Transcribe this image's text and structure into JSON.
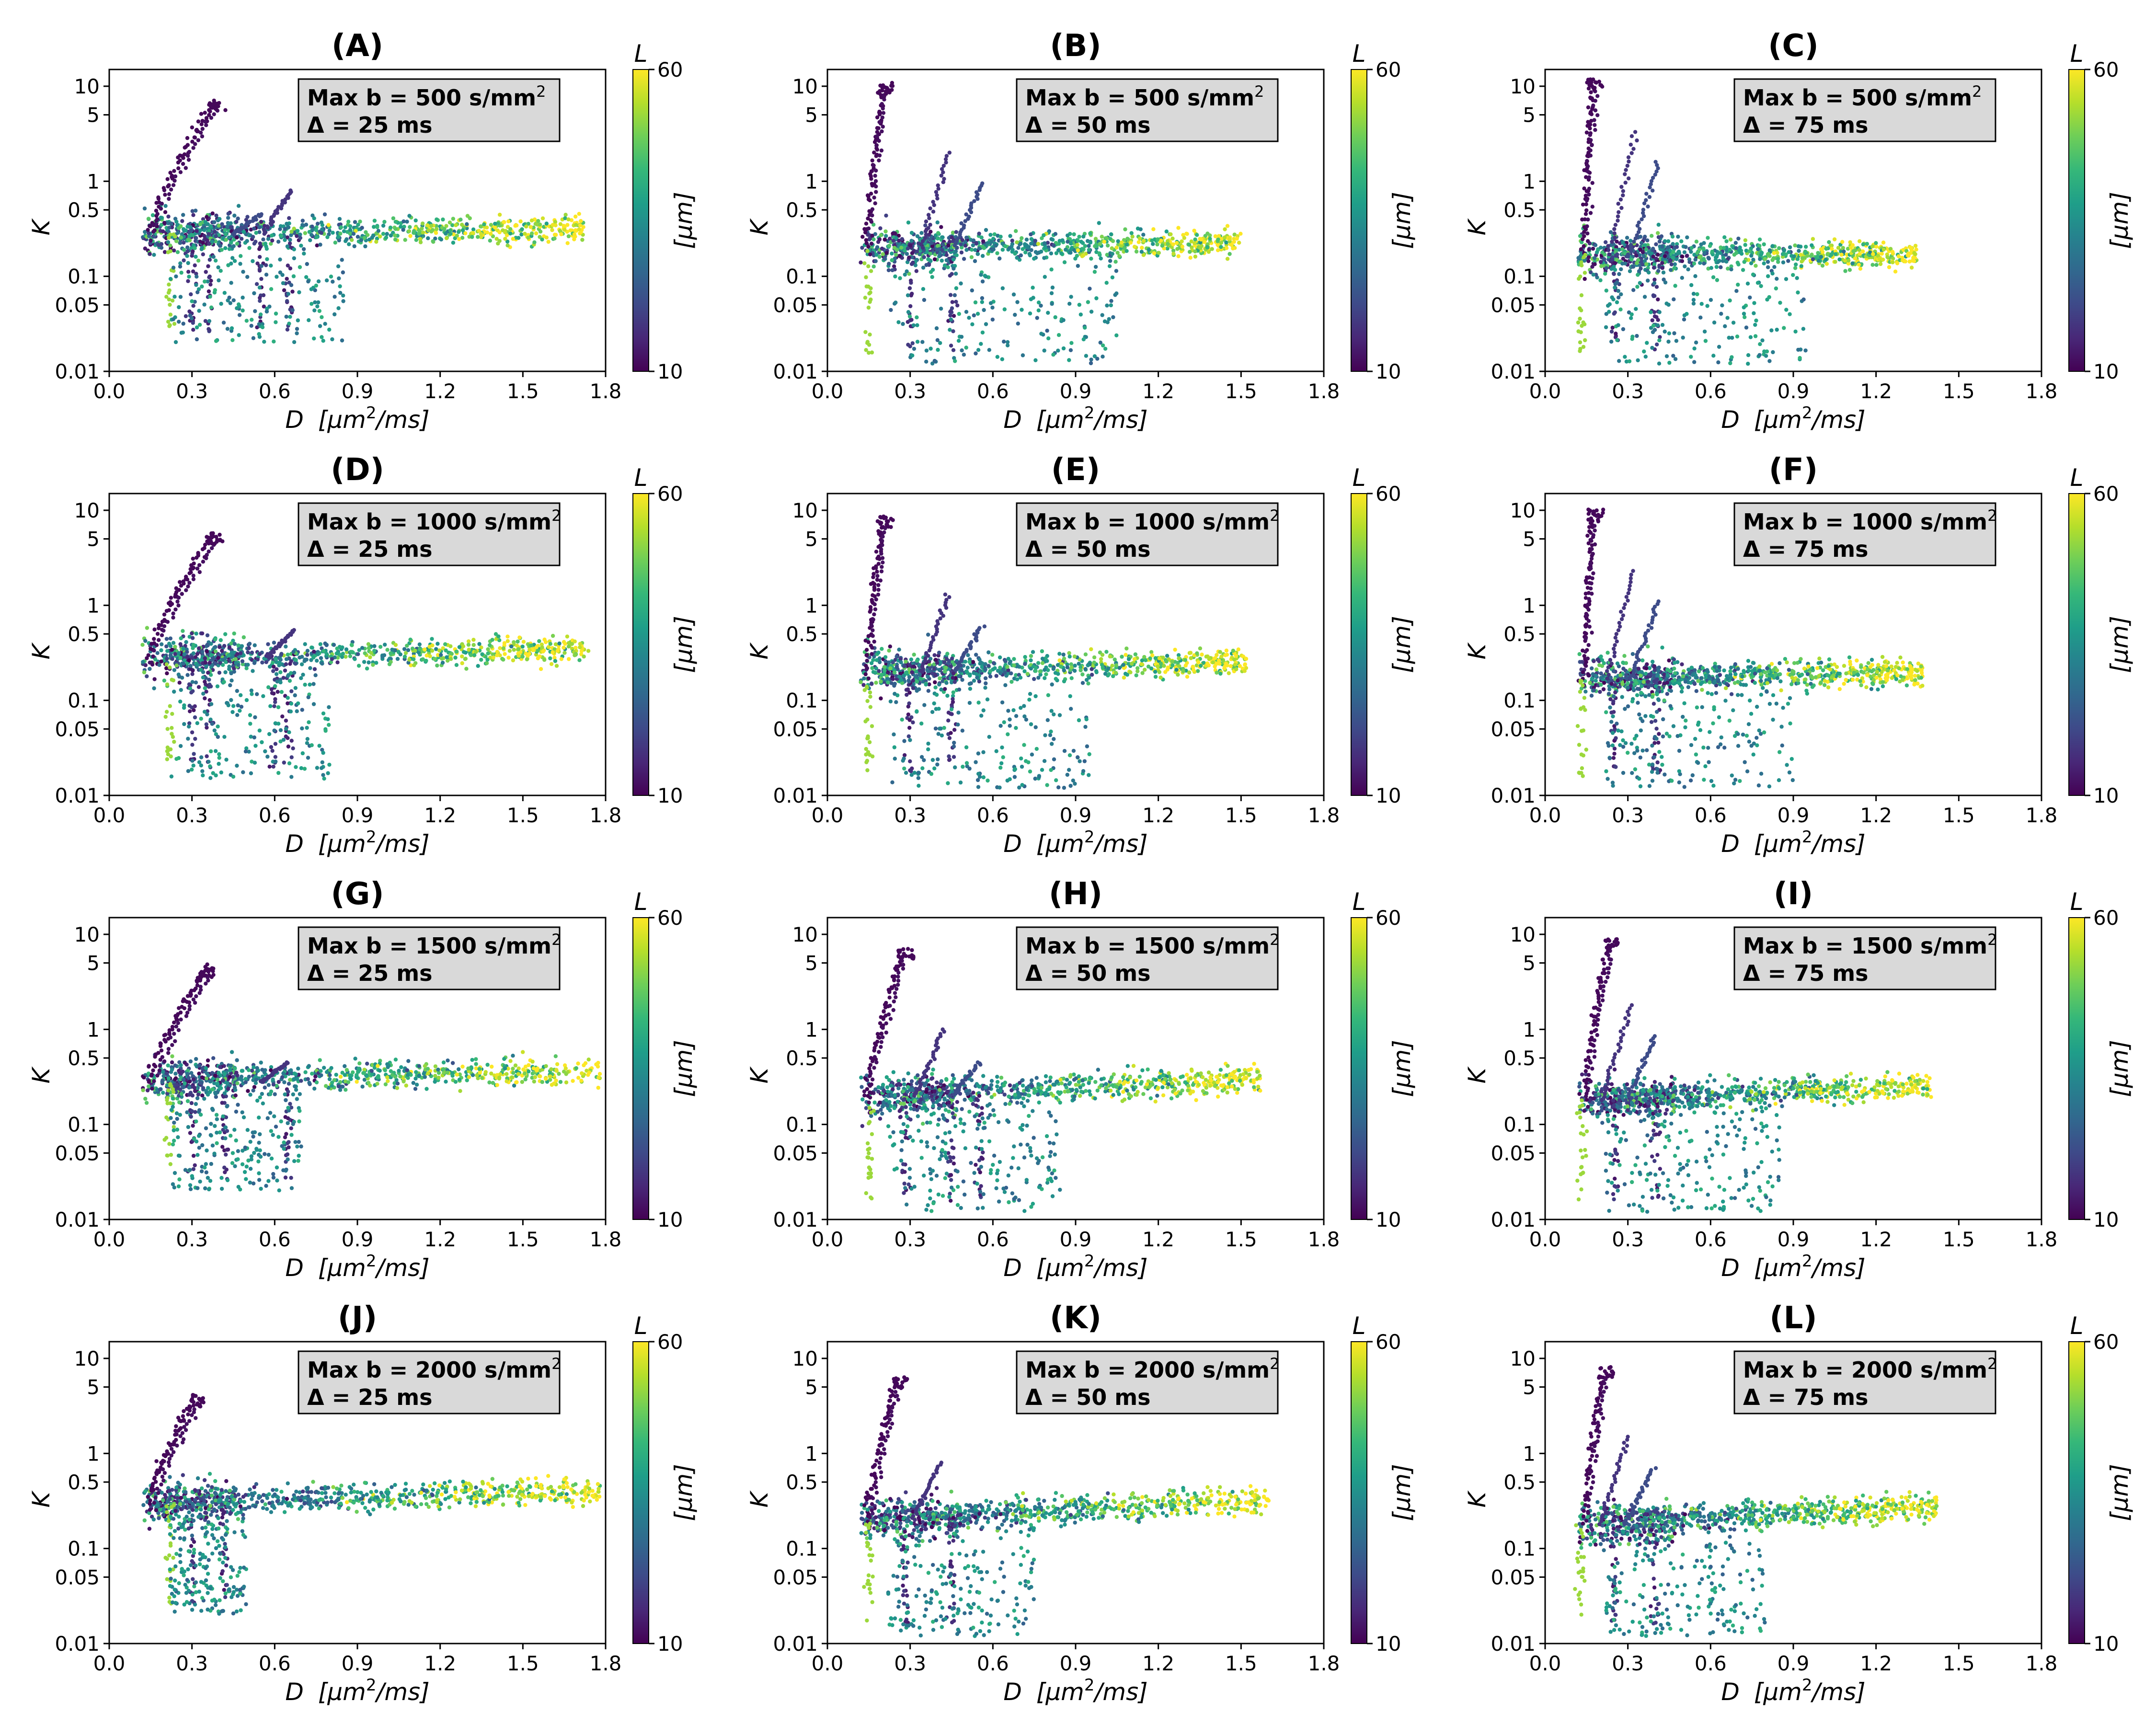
{
  "figure": {
    "layout": "4 rows x 3 columns of scatter plots",
    "shared": {
      "xlabel_var": "D",
      "xlabel_unit_pre": "[μm",
      "xlabel_unit_post": "/ms]",
      "xlabel_sup": "2",
      "ylabel": "K",
      "colorbar_symbol": "L",
      "colorbar_unit": "[μm]",
      "colorbar_ticks": [
        "60",
        "10"
      ],
      "box_line1_prefix": "Max b = ",
      "box_line1_unit": " s/mm",
      "box_sup": "2",
      "box_line2_prefix": "Δ = ",
      "box_line2_suffix": " ms"
    }
  },
  "chart_data": [
    {
      "type": "scatter",
      "panel": "(A)",
      "max_b": "500",
      "delta": "25",
      "title": "(A)",
      "xlabel": "D [μm2/ms]",
      "ylabel": "K",
      "xlim": [
        0.0,
        1.8
      ],
      "ylim": [
        0.01,
        15
      ],
      "yscale": "log",
      "xticks": [
        "0.0",
        "0.3",
        "0.6",
        "0.9",
        "1.2",
        "1.5",
        "1.8"
      ],
      "yticks": [
        "0.01",
        "0.05",
        "0.1",
        "0.5",
        "1",
        "5",
        "10"
      ],
      "colorbar": {
        "label": "L [μm]",
        "range": [
          10,
          60
        ]
      },
      "clusters": {
        "plateau": 0.28,
        "plateau_slope": 0.04,
        "x_start": 0.12,
        "x_end": 1.72,
        "spike_peak": 6.8,
        "spike_x": 0.38,
        "mini_spikes": [
          [
            0.66,
            0.8
          ],
          [
            0.55,
            0.45
          ]
        ],
        "drop_xs": [
          0.22,
          0.3,
          0.36,
          0.55,
          0.65
        ],
        "low_cloud_max_x": 0.85,
        "low_cloud_min_k": 0.02
      }
    },
    {
      "type": "scatter",
      "panel": "(B)",
      "max_b": "500",
      "delta": "50",
      "title": "(B)",
      "xlabel": "D [μm2/ms]",
      "ylabel": "K",
      "xlim": [
        0.0,
        1.8
      ],
      "ylim": [
        0.01,
        15
      ],
      "yscale": "log",
      "xticks": [
        "0.0",
        "0.3",
        "0.6",
        "0.9",
        "1.2",
        "1.5",
        "1.8"
      ],
      "yticks": [
        "0.01",
        "0.05",
        "0.1",
        "0.5",
        "1",
        "5",
        "10"
      ],
      "colorbar": {
        "label": "L [μm]",
        "range": [
          10,
          60
        ]
      },
      "clusters": {
        "plateau": 0.2,
        "plateau_slope": 0.04,
        "x_start": 0.12,
        "x_end": 1.5,
        "spike_peak": 10,
        "spike_x": 0.2,
        "mini_spikes": [
          [
            0.44,
            2.0
          ],
          [
            0.56,
            0.95
          ]
        ],
        "drop_xs": [
          0.15,
          0.3,
          0.45
        ],
        "low_cloud_max_x": 1.05,
        "low_cloud_min_k": 0.012
      }
    },
    {
      "type": "scatter",
      "panel": "(C)",
      "max_b": "500",
      "delta": "75",
      "title": "(C)",
      "xlabel": "D [μm2/ms]",
      "ylabel": "K",
      "xlim": [
        0.0,
        1.8
      ],
      "ylim": [
        0.01,
        15
      ],
      "yscale": "log",
      "xticks": [
        "0.0",
        "0.3",
        "0.6",
        "0.9",
        "1.2",
        "1.5",
        "1.8"
      ],
      "yticks": [
        "0.01",
        "0.05",
        "0.1",
        "0.5",
        "1",
        "5",
        "10"
      ],
      "colorbar": {
        "label": "L [μm]",
        "range": [
          10,
          60
        ]
      },
      "clusters": {
        "plateau": 0.17,
        "plateau_slope": 0.0,
        "x_start": 0.12,
        "x_end": 1.35,
        "spike_peak": 11,
        "spike_x": 0.17,
        "mini_spikes": [
          [
            0.33,
            3.3
          ],
          [
            0.41,
            1.6
          ]
        ],
        "drop_xs": [
          0.13,
          0.25,
          0.4
        ],
        "low_cloud_max_x": 0.95,
        "low_cloud_min_k": 0.012
      }
    },
    {
      "type": "scatter",
      "panel": "(D)",
      "max_b": "1000",
      "delta": "25",
      "title": "(D)",
      "xlabel": "D [μm2/ms]",
      "ylabel": "K",
      "xlim": [
        0.0,
        1.8
      ],
      "ylim": [
        0.01,
        15
      ],
      "yscale": "log",
      "xticks": [
        "0.0",
        "0.3",
        "0.6",
        "0.9",
        "1.2",
        "1.5",
        "1.8"
      ],
      "yticks": [
        "0.01",
        "0.05",
        "0.1",
        "0.5",
        "1",
        "5",
        "10"
      ],
      "colorbar": {
        "label": "L [μm]",
        "range": [
          10,
          60
        ]
      },
      "clusters": {
        "plateau": 0.28,
        "plateau_slope": 0.07,
        "x_start": 0.12,
        "x_end": 1.74,
        "spike_peak": 5.3,
        "spike_x": 0.37,
        "mini_spikes": [
          [
            0.67,
            0.55
          ]
        ],
        "drop_xs": [
          0.22,
          0.3,
          0.36,
          0.6,
          0.65
        ],
        "low_cloud_max_x": 0.8,
        "low_cloud_min_k": 0.015
      }
    },
    {
      "type": "scatter",
      "panel": "(E)",
      "max_b": "1000",
      "delta": "50",
      "title": "(E)",
      "xlabel": "D [μm2/ms]",
      "ylabel": "K",
      "xlim": [
        0.0,
        1.8
      ],
      "ylim": [
        0.01,
        15
      ],
      "yscale": "log",
      "xticks": [
        "0.0",
        "0.3",
        "0.6",
        "0.9",
        "1.2",
        "1.5",
        "1.8"
      ],
      "yticks": [
        "0.01",
        "0.05",
        "0.1",
        "0.5",
        "1",
        "5",
        "10"
      ],
      "colorbar": {
        "label": "L [μm]",
        "range": [
          10,
          60
        ]
      },
      "clusters": {
        "plateau": 0.2,
        "plateau_slope": 0.09,
        "x_start": 0.12,
        "x_end": 1.52,
        "spike_peak": 8,
        "spike_x": 0.2,
        "mini_spikes": [
          [
            0.44,
            1.3
          ],
          [
            0.56,
            0.6
          ]
        ],
        "drop_xs": [
          0.15,
          0.3,
          0.45
        ],
        "low_cloud_max_x": 0.95,
        "low_cloud_min_k": 0.012
      }
    },
    {
      "type": "scatter",
      "panel": "(F)",
      "max_b": "1000",
      "delta": "75",
      "title": "(F)",
      "xlabel": "D [μm2/ms]",
      "ylabel": "K",
      "xlim": [
        0.0,
        1.8
      ],
      "ylim": [
        0.01,
        15
      ],
      "yscale": "log",
      "xticks": [
        "0.0",
        "0.3",
        "0.6",
        "0.9",
        "1.2",
        "1.5",
        "1.8"
      ],
      "yticks": [
        "0.01",
        "0.05",
        "0.1",
        "0.5",
        "1",
        "5",
        "10"
      ],
      "colorbar": {
        "label": "L [μm]",
        "range": [
          10,
          60
        ]
      },
      "clusters": {
        "plateau": 0.17,
        "plateau_slope": 0.05,
        "x_start": 0.12,
        "x_end": 1.37,
        "spike_peak": 9.5,
        "spike_x": 0.17,
        "mini_spikes": [
          [
            0.32,
            2.3
          ],
          [
            0.41,
            1.1
          ]
        ],
        "drop_xs": [
          0.13,
          0.25,
          0.4
        ],
        "low_cloud_max_x": 0.9,
        "low_cloud_min_k": 0.012
      }
    },
    {
      "type": "scatter",
      "panel": "(G)",
      "max_b": "1500",
      "delta": "25",
      "title": "(G)",
      "xlabel": "D [μm2/ms]",
      "ylabel": "K",
      "xlim": [
        0.0,
        1.8
      ],
      "ylim": [
        0.01,
        15
      ],
      "yscale": "log",
      "xticks": [
        "0.0",
        "0.3",
        "0.6",
        "0.9",
        "1.2",
        "1.5",
        "1.8"
      ],
      "yticks": [
        "0.01",
        "0.05",
        "0.1",
        "0.5",
        "1",
        "5",
        "10"
      ],
      "colorbar": {
        "label": "L [μm]",
        "range": [
          10,
          60
        ]
      },
      "clusters": {
        "plateau": 0.28,
        "plateau_slope": 0.1,
        "x_start": 0.12,
        "x_end": 1.78,
        "spike_peak": 4.3,
        "spike_x": 0.35,
        "mini_spikes": [
          [
            0.65,
            0.45
          ]
        ],
        "drop_xs": [
          0.22,
          0.3,
          0.42,
          0.65
        ],
        "low_cloud_max_x": 0.7,
        "low_cloud_min_k": 0.02
      }
    },
    {
      "type": "scatter",
      "panel": "(H)",
      "max_b": "1500",
      "delta": "50",
      "title": "(H)",
      "xlabel": "D [μm2/ms]",
      "ylabel": "K",
      "xlim": [
        0.0,
        1.8
      ],
      "ylim": [
        0.01,
        15
      ],
      "yscale": "log",
      "xticks": [
        "0.0",
        "0.3",
        "0.6",
        "0.9",
        "1.2",
        "1.5",
        "1.8"
      ],
      "yticks": [
        "0.01",
        "0.05",
        "0.1",
        "0.5",
        "1",
        "5",
        "10"
      ],
      "colorbar": {
        "label": "L [μm]",
        "range": [
          10,
          60
        ]
      },
      "clusters": {
        "plateau": 0.2,
        "plateau_slope": 0.14,
        "x_start": 0.12,
        "x_end": 1.57,
        "spike_peak": 6.5,
        "spike_x": 0.27,
        "mini_spikes": [
          [
            0.42,
            1.0
          ],
          [
            0.55,
            0.45
          ]
        ],
        "drop_xs": [
          0.15,
          0.28,
          0.45,
          0.55
        ],
        "low_cloud_max_x": 0.85,
        "low_cloud_min_k": 0.012
      }
    },
    {
      "type": "scatter",
      "panel": "(I)",
      "max_b": "1500",
      "delta": "75",
      "title": "(I)",
      "xlabel": "D [μm2/ms]",
      "ylabel": "K",
      "xlim": [
        0.0,
        1.8
      ],
      "ylim": [
        0.01,
        15
      ],
      "yscale": "log",
      "xticks": [
        "0.0",
        "0.3",
        "0.6",
        "0.9",
        "1.2",
        "1.5",
        "1.8"
      ],
      "yticks": [
        "0.01",
        "0.05",
        "0.1",
        "0.5",
        "1",
        "5",
        "10"
      ],
      "colorbar": {
        "label": "L [μm]",
        "range": [
          10,
          60
        ]
      },
      "clusters": {
        "plateau": 0.18,
        "plateau_slope": 0.13,
        "x_start": 0.12,
        "x_end": 1.4,
        "spike_peak": 8.3,
        "spike_x": 0.23,
        "mini_spikes": [
          [
            0.31,
            1.8
          ],
          [
            0.4,
            0.85
          ]
        ],
        "drop_xs": [
          0.13,
          0.25,
          0.4
        ],
        "low_cloud_max_x": 0.85,
        "low_cloud_min_k": 0.012
      }
    },
    {
      "type": "scatter",
      "panel": "(J)",
      "max_b": "2000",
      "delta": "25",
      "title": "(J)",
      "xlabel": "D [μm2/ms]",
      "ylabel": "K",
      "xlim": [
        0.0,
        1.8
      ],
      "ylim": [
        0.01,
        15
      ],
      "yscale": "log",
      "xticks": [
        "0.0",
        "0.3",
        "0.6",
        "0.9",
        "1.2",
        "1.5",
        "1.8"
      ],
      "yticks": [
        "0.01",
        "0.05",
        "0.1",
        "0.5",
        "1",
        "5",
        "10"
      ],
      "colorbar": {
        "label": "L [μm]",
        "range": [
          10,
          60
        ]
      },
      "clusters": {
        "plateau": 0.3,
        "plateau_slope": 0.11,
        "x_start": 0.12,
        "x_end": 1.78,
        "spike_peak": 3.8,
        "spike_x": 0.31,
        "mini_spikes": [],
        "drop_xs": [
          0.22,
          0.3,
          0.42
        ],
        "low_cloud_max_x": 0.5,
        "low_cloud_min_k": 0.02
      }
    },
    {
      "type": "scatter",
      "panel": "(K)",
      "max_b": "2000",
      "delta": "50",
      "title": "(K)",
      "xlabel": "D [μm2/ms]",
      "ylabel": "K",
      "xlim": [
        0.0,
        1.8
      ],
      "ylim": [
        0.01,
        15
      ],
      "yscale": "log",
      "xticks": [
        "0.0",
        "0.3",
        "0.6",
        "0.9",
        "1.2",
        "1.5",
        "1.8"
      ],
      "yticks": [
        "0.01",
        "0.05",
        "0.1",
        "0.5",
        "1",
        "5",
        "10"
      ],
      "colorbar": {
        "label": "L [μm]",
        "range": [
          10,
          60
        ]
      },
      "clusters": {
        "plateau": 0.2,
        "plateau_slope": 0.17,
        "x_start": 0.12,
        "x_end": 1.6,
        "spike_peak": 6.0,
        "spike_x": 0.25,
        "mini_spikes": [
          [
            0.41,
            0.8
          ]
        ],
        "drop_xs": [
          0.15,
          0.28,
          0.45
        ],
        "low_cloud_max_x": 0.75,
        "low_cloud_min_k": 0.012
      }
    },
    {
      "type": "scatter",
      "panel": "(L)",
      "max_b": "2000",
      "delta": "75",
      "title": "(L)",
      "xlabel": "D [μm2/ms]",
      "ylabel": "K",
      "xlim": [
        0.0,
        1.8
      ],
      "ylim": [
        0.01,
        15
      ],
      "yscale": "log",
      "xticks": [
        "0.0",
        "0.3",
        "0.6",
        "0.9",
        "1.2",
        "1.5",
        "1.8"
      ],
      "yticks": [
        "0.01",
        "0.05",
        "0.1",
        "0.5",
        "1",
        "5",
        "10"
      ],
      "colorbar": {
        "label": "L [μm]",
        "range": [
          10,
          60
        ]
      },
      "clusters": {
        "plateau": 0.18,
        "plateau_slope": 0.16,
        "x_start": 0.12,
        "x_end": 1.42,
        "spike_peak": 7.5,
        "spike_x": 0.21,
        "mini_spikes": [
          [
            0.3,
            1.5
          ],
          [
            0.39,
            0.7
          ]
        ],
        "drop_xs": [
          0.13,
          0.25,
          0.4
        ],
        "low_cloud_max_x": 0.8,
        "low_cloud_min_k": 0.012
      }
    }
  ]
}
